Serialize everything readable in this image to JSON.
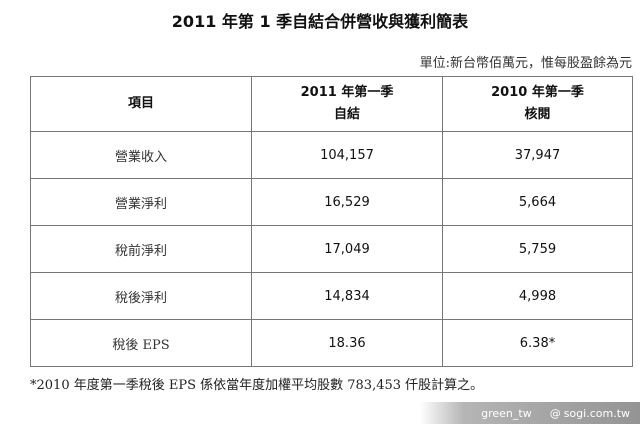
{
  "title": "2011 年第 1 季自結合併營收與獲利簡表",
  "unit_note": "單位:新台幣佰萬元，惟每股盈餘為元",
  "table": {
    "headers": [
      {
        "line1": "項目",
        "line2": ""
      },
      {
        "line1": "2011 年第一季",
        "line2": "自結"
      },
      {
        "line1": "2010 年第一季",
        "line2": "核閱"
      }
    ],
    "rows": [
      {
        "item": "營業收入",
        "q1_2011": "104,157",
        "q1_2010": "37,947"
      },
      {
        "item": "營業淨利",
        "q1_2011": "16,529",
        "q1_2010": "5,664"
      },
      {
        "item": "稅前淨利",
        "q1_2011": "17,049",
        "q1_2010": "5,759"
      },
      {
        "item": "稅後淨利",
        "q1_2011": "14,834",
        "q1_2010": "4,998"
      },
      {
        "item": "稅後 EPS",
        "q1_2011": "18.36",
        "q1_2010": "6.38*"
      }
    ]
  },
  "footnote": "*2010 年度第一季稅後 EPS 係依當年度加權平均股數 783,453 仟股計算之。",
  "watermark": {
    "user": "green_tw",
    "site": "sogi.com.tw",
    "icon": "at-icon"
  }
}
